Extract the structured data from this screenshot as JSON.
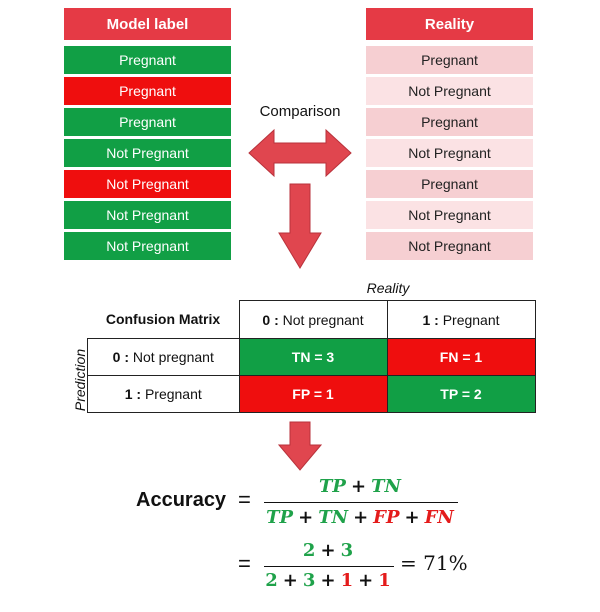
{
  "model_column": {
    "header": "Model label",
    "rows": [
      {
        "label": "Pregnant",
        "status": "correct"
      },
      {
        "label": "Pregnant",
        "status": "wrong"
      },
      {
        "label": "Pregnant",
        "status": "correct"
      },
      {
        "label": "Not Pregnant",
        "status": "correct"
      },
      {
        "label": "Not Pregnant",
        "status": "wrong"
      },
      {
        "label": "Not Pregnant",
        "status": "correct"
      },
      {
        "label": "Not Pregnant",
        "status": "correct"
      }
    ]
  },
  "reality_column": {
    "header": "Reality",
    "rows": [
      "Pregnant",
      "Not Pregnant",
      "Pregnant",
      "Not Pregnant",
      "Pregnant",
      "Not Pregnant",
      "Not Pregnant"
    ]
  },
  "comparison_label": "Comparison",
  "matrix": {
    "title": "Confusion Matrix",
    "reality_axis": "Reality",
    "prediction_axis": "Prediction",
    "col_headers": [
      {
        "code": "0 :",
        "text": " Not pregnant"
      },
      {
        "code": "1 :",
        "text": " Pregnant"
      }
    ],
    "row_headers": [
      {
        "code": "0 :",
        "text": " Not pregnant"
      },
      {
        "code": "1 :",
        "text": " Pregnant"
      }
    ],
    "cells": {
      "tn": "TN = 3",
      "fn": "FN = 1",
      "fp": "FP = 1",
      "tp": "TP = 2"
    }
  },
  "formula": {
    "accuracy_label": "Accuracy",
    "equals": "=",
    "tp": "TP",
    "tn": "TN",
    "fp": "FP",
    "fn": "FN",
    "plus": "+",
    "n_tp": "2",
    "n_tn": "3",
    "n_fp": "1",
    "n_fn": "1",
    "result": "= 71%"
  },
  "colors": {
    "green": "#119f45",
    "red": "#ef0e0e",
    "header_red": "#e53a45",
    "arrow_red": "#e0464f"
  }
}
